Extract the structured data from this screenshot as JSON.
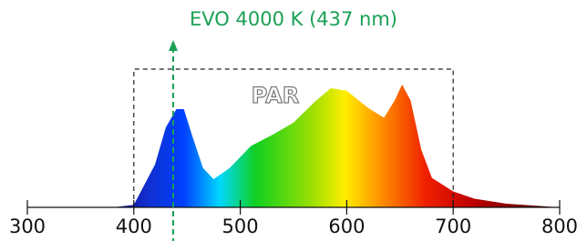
{
  "chart_data": {
    "type": "area",
    "x": [
      380,
      400,
      420,
      430,
      440,
      447,
      455,
      465,
      475,
      490,
      510,
      530,
      550,
      570,
      585,
      600,
      620,
      635,
      645,
      652,
      660,
      670,
      680,
      700,
      720,
      750,
      800
    ],
    "values": [
      0,
      2,
      35,
      65,
      80,
      80,
      58,
      32,
      23,
      32,
      50,
      59,
      69,
      86,
      97,
      95,
      81,
      73,
      87,
      100,
      87,
      47,
      24,
      13,
      7,
      3,
      0
    ],
    "xlim": [
      300,
      800
    ],
    "xticks": [
      300,
      400,
      500,
      600,
      700,
      800
    ],
    "ylim": [
      0,
      100
    ],
    "regions": [
      {
        "label": "PAR",
        "x": [
          400,
          700
        ]
      }
    ],
    "annotations": [
      {
        "label": "EVO 4000 K (437 nm)",
        "x": 437,
        "color": "#1aa055"
      }
    ]
  }
}
